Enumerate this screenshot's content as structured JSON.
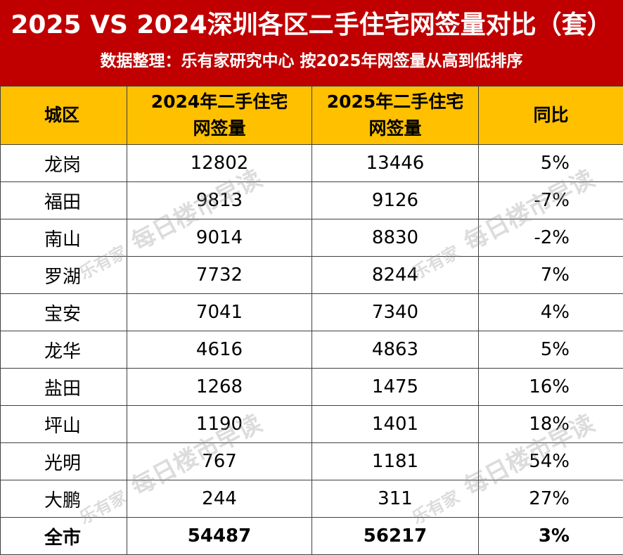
{
  "title": "2025 VS 2024深圳各区二手住宅网签量对比（套）",
  "subtitle": "数据整理：乐有家研究中心  按2025年网签量从高到低排序",
  "colors": {
    "header_bg": "#c00000",
    "table_header_bg": "#ffc000",
    "grid": "#404040"
  },
  "table": {
    "headers": {
      "district": "城区",
      "y2024": "2024年二手住宅网签量",
      "y2024_l1": "2024年二手住宅",
      "y2024_l2": "网签量",
      "y2025": "2025年二手住宅网签量",
      "y2025_l1": "2025年二手住宅",
      "y2025_l2": "网签量",
      "yoy": "同比"
    },
    "rows": [
      {
        "district": "龙岗",
        "y2024": "12802",
        "y2025": "13446",
        "yoy": "5%"
      },
      {
        "district": "福田",
        "y2024": "9813",
        "y2025": "9126",
        "yoy": "-7%"
      },
      {
        "district": "南山",
        "y2024": "9014",
        "y2025": "8830",
        "yoy": "-2%"
      },
      {
        "district": "罗湖",
        "y2024": "7732",
        "y2025": "8244",
        "yoy": "7%"
      },
      {
        "district": "宝安",
        "y2024": "7041",
        "y2025": "7340",
        "yoy": "4%"
      },
      {
        "district": "龙华",
        "y2024": "4616",
        "y2025": "4863",
        "yoy": "5%"
      },
      {
        "district": "盐田",
        "y2024": "1268",
        "y2025": "1475",
        "yoy": "16%"
      },
      {
        "district": "坪山",
        "y2024": "1190",
        "y2025": "1401",
        "yoy": "18%"
      },
      {
        "district": "光明",
        "y2024": "767",
        "y2025": "1181",
        "yoy": "54%"
      },
      {
        "district": "大鹏",
        "y2024": "244",
        "y2025": "311",
        "yoy": "27%"
      }
    ],
    "total": {
      "district": "全市",
      "y2024": "54487",
      "y2025": "56217",
      "yoy": "3%"
    }
  },
  "watermark": {
    "brand": "乐有家",
    "text": "每日楼市早读"
  }
}
